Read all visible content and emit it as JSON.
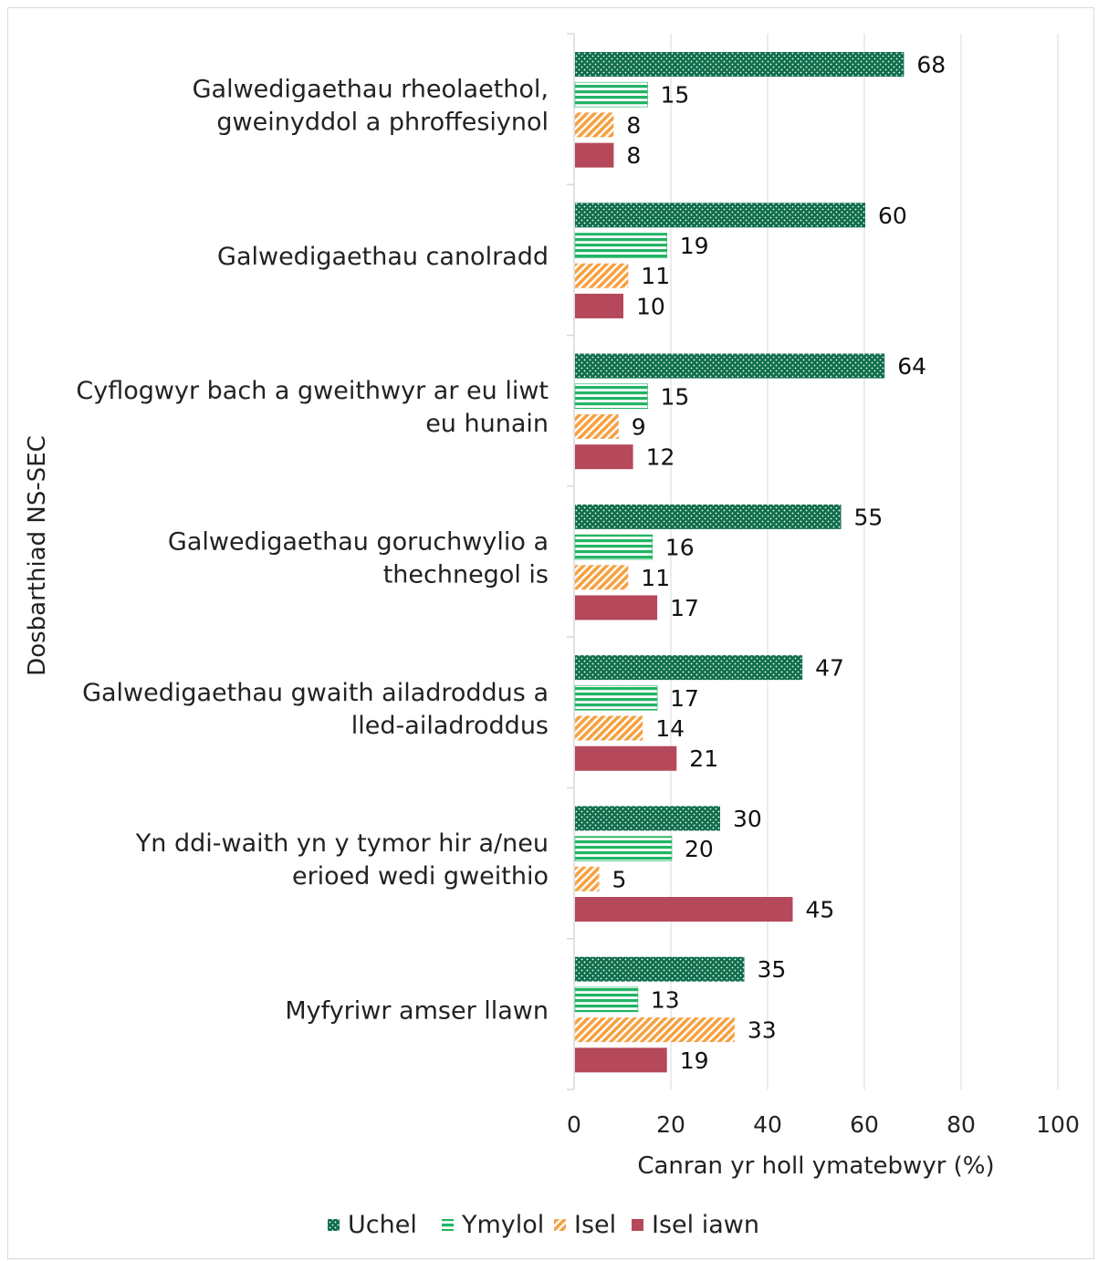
{
  "chart_data": {
    "type": "bar",
    "orientation": "horizontal",
    "xlabel": "Canran yr holl ymatebwyr (%)",
    "ylabel": "Dosbarthiad NS-SEC",
    "xlim": [
      0,
      100
    ],
    "xticks": [
      0,
      20,
      40,
      60,
      80,
      100
    ],
    "grid": "vertical",
    "legend_position": "bottom",
    "categories": [
      [
        "Galwedigaethau rheolaethol,",
        "gweinyddol a phroffesiynol"
      ],
      [
        "Galwedigaethau canolradd"
      ],
      [
        "Cyflogwyr bach a gweithwyr ar eu liwt",
        "eu hunain"
      ],
      [
        "Galwedigaethau goruchwylio a",
        "thechnegol is"
      ],
      [
        "Galwedigaethau gwaith ailadroddus a",
        "lled-ailadroddus"
      ],
      [
        "Yn ddi-waith yn y tymor hir a/neu",
        "erioed wedi gweithio"
      ],
      [
        "Myfyriwr amser llawn"
      ]
    ],
    "series": [
      {
        "name": "Uchel",
        "color": "#0f6e4b",
        "pattern": "dots",
        "values": [
          68,
          60,
          64,
          55,
          47,
          30,
          35
        ]
      },
      {
        "name": "Ymylol",
        "color": "#22b464",
        "pattern": "horizontal-stripes",
        "values": [
          15,
          19,
          15,
          16,
          17,
          20,
          13
        ]
      },
      {
        "name": "Isel",
        "color": "#f5a142",
        "pattern": "diagonal-stripes",
        "values": [
          8,
          11,
          9,
          11,
          14,
          5,
          33
        ]
      },
      {
        "name": "Isel iawn",
        "color": "#b5485a",
        "pattern": "solid",
        "values": [
          8,
          10,
          12,
          17,
          21,
          45,
          19
        ]
      }
    ]
  }
}
